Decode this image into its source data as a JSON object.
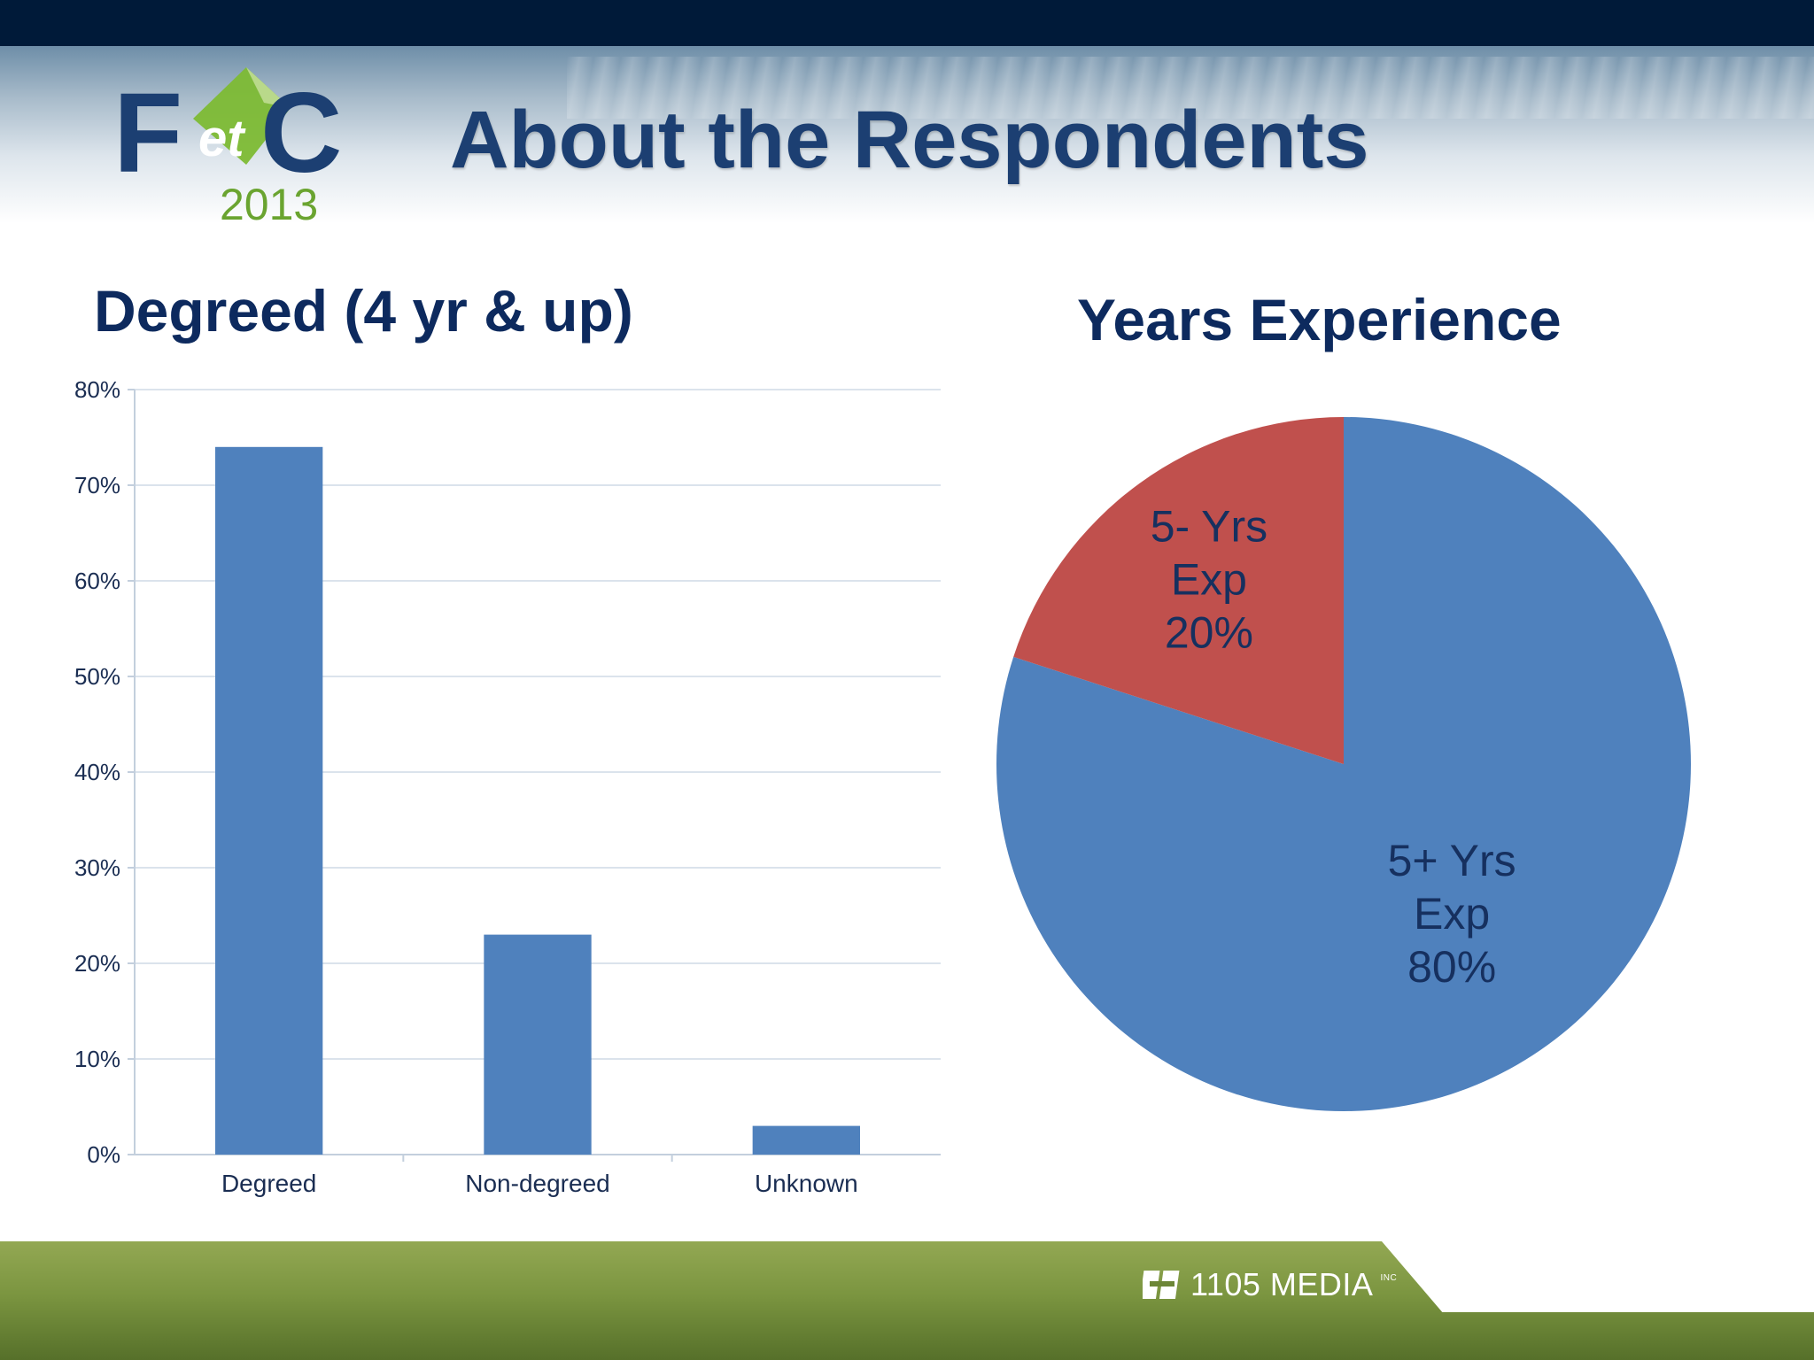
{
  "header": {
    "title": "About the Respondents",
    "logo": {
      "text_main": "FetC",
      "text_year": "2013",
      "accent": "#7dbb34",
      "brand": "#1c3f72"
    }
  },
  "footer": {
    "brand": "1105 MEDIA",
    "brand_sup": "INC"
  },
  "colors": {
    "bar": "#4f81bd",
    "slice_major": "#4f81bd",
    "slice_minor": "#c0504d",
    "gridline": "#dbe3ec",
    "tick": "#1a2d52"
  },
  "chart_data": [
    {
      "type": "bar",
      "title": "Degreed (4 yr & up)",
      "categories": [
        "Degreed",
        "Non-degreed",
        "Unknown"
      ],
      "values": [
        74,
        23,
        3
      ],
      "ylim": [
        0,
        80
      ],
      "yticks": [
        "0%",
        "10%",
        "20%",
        "30%",
        "40%",
        "50%",
        "60%",
        "70%",
        "80%"
      ],
      "xlabel": "",
      "ylabel": "",
      "grid": true
    },
    {
      "type": "pie",
      "title": "Years Experience",
      "slices": [
        {
          "label_lines": [
            "5+ Yrs",
            "Exp",
            "80%"
          ],
          "value": 80,
          "color": "#4f81bd"
        },
        {
          "label_lines": [
            "5- Yrs",
            "Exp",
            "20%"
          ],
          "value": 20,
          "color": "#c0504d"
        }
      ]
    }
  ]
}
